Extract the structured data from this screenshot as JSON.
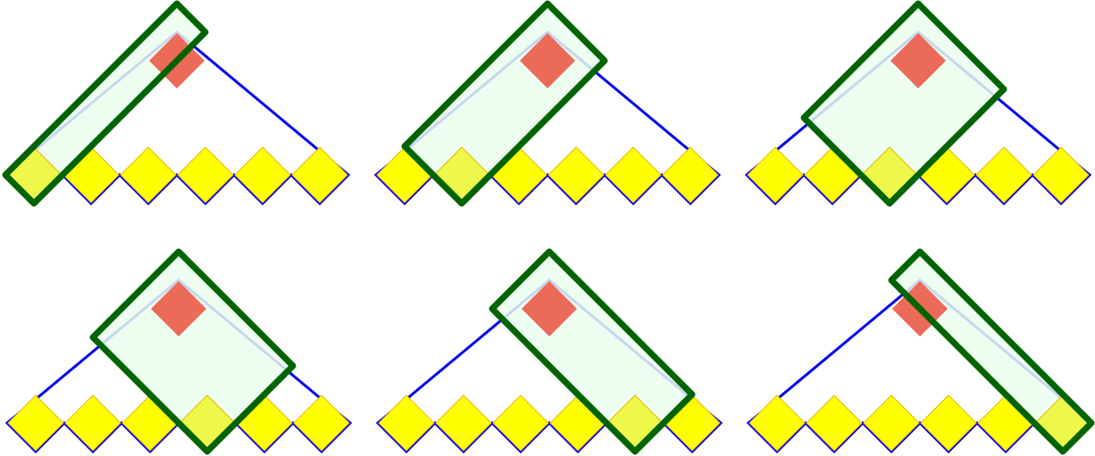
{
  "diagram": {
    "panel_count": 6,
    "leaf_cells_per_panel": 6,
    "highlighted_leaf_index": [
      0,
      1,
      2,
      3,
      4,
      5
    ],
    "colors": {
      "leaf_cell": "#ffff00",
      "leaf_outline": "#e8b800",
      "top_cell": "#ec6a58",
      "triangle_outline": "#0000ee",
      "selection_fill": "#eafded",
      "selection_stroke": "#006400",
      "highlighted_leaf": "#eef84a"
    }
  }
}
